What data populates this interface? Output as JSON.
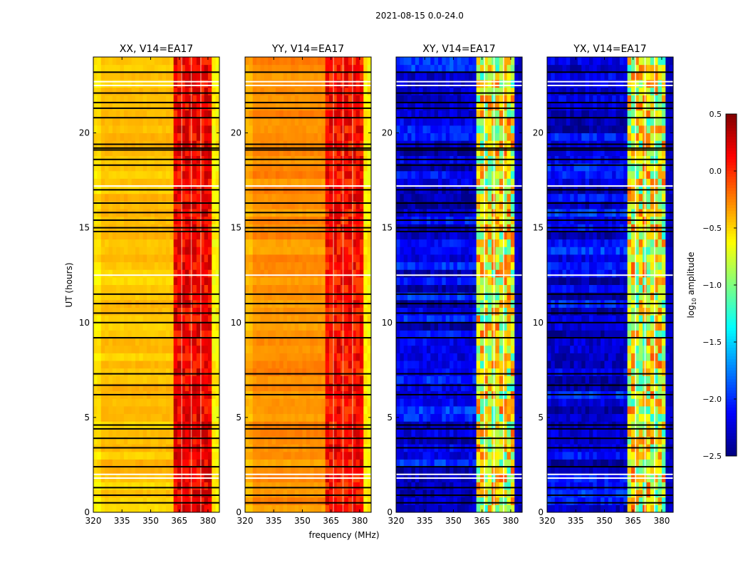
{
  "chart_data": {
    "type": "heatmap",
    "suptitle": "2021-08-15 0.0-24.0",
    "xlabel": "frequency (MHz)",
    "ylabel": "UT (hours)",
    "xlim": [
      320,
      386
    ],
    "ylim": [
      0,
      24
    ],
    "xticks": [
      320,
      335,
      350,
      365,
      380
    ],
    "yticks": [
      0,
      5,
      10,
      15,
      20
    ],
    "colorbar": {
      "label_prefix": "log",
      "label_sub": "10",
      "label_suffix": " amplitude",
      "colormap": "jet",
      "range": [
        -2.5,
        0.5
      ],
      "ticks": [
        "0.5",
        "0.0",
        "−0.5",
        "−1.0",
        "−1.5",
        "−2.0",
        "−2.5"
      ],
      "tick_values": [
        0.5,
        0.0,
        -0.5,
        -1.0,
        -1.5,
        -2.0,
        -2.5
      ]
    },
    "band_mhz": [
      362,
      381
    ],
    "band_gaps_mhz": [
      366,
      371,
      376
    ],
    "flagged_hours_black": [
      0.5,
      0.9,
      1.3,
      2.4,
      3.4,
      3.9,
      4.4,
      4.6,
      6.2,
      6.7,
      7.3,
      9.2,
      10.0,
      10.5,
      11.0,
      11.5,
      14.8,
      15.0,
      15.4,
      15.8,
      16.3,
      17.0,
      18.3,
      18.6,
      19.1,
      19.2,
      19.4,
      20.8,
      21.3,
      21.6,
      22.1,
      23.2
    ],
    "flagged_hours_white": [
      1.8,
      2.0,
      12.5,
      17.2,
      22.5,
      22.7
    ],
    "panels": [
      {
        "title": "XX, V14=EA17",
        "base_log_amp": -0.45,
        "band_log_amp": 0.15,
        "above_band_log_amp": -0.6
      },
      {
        "title": "YY, V14=EA17",
        "base_log_amp": -0.3,
        "band_log_amp": 0.1,
        "above_band_log_amp": -0.6
      },
      {
        "title": "XY, V14=EA17",
        "base_log_amp": -2.2,
        "band_log_amp": -0.7,
        "above_band_log_amp": -2.3
      },
      {
        "title": "YX, V14=EA17",
        "base_log_amp": -2.2,
        "band_log_amp": -0.7,
        "above_band_log_amp": -2.3
      }
    ]
  }
}
